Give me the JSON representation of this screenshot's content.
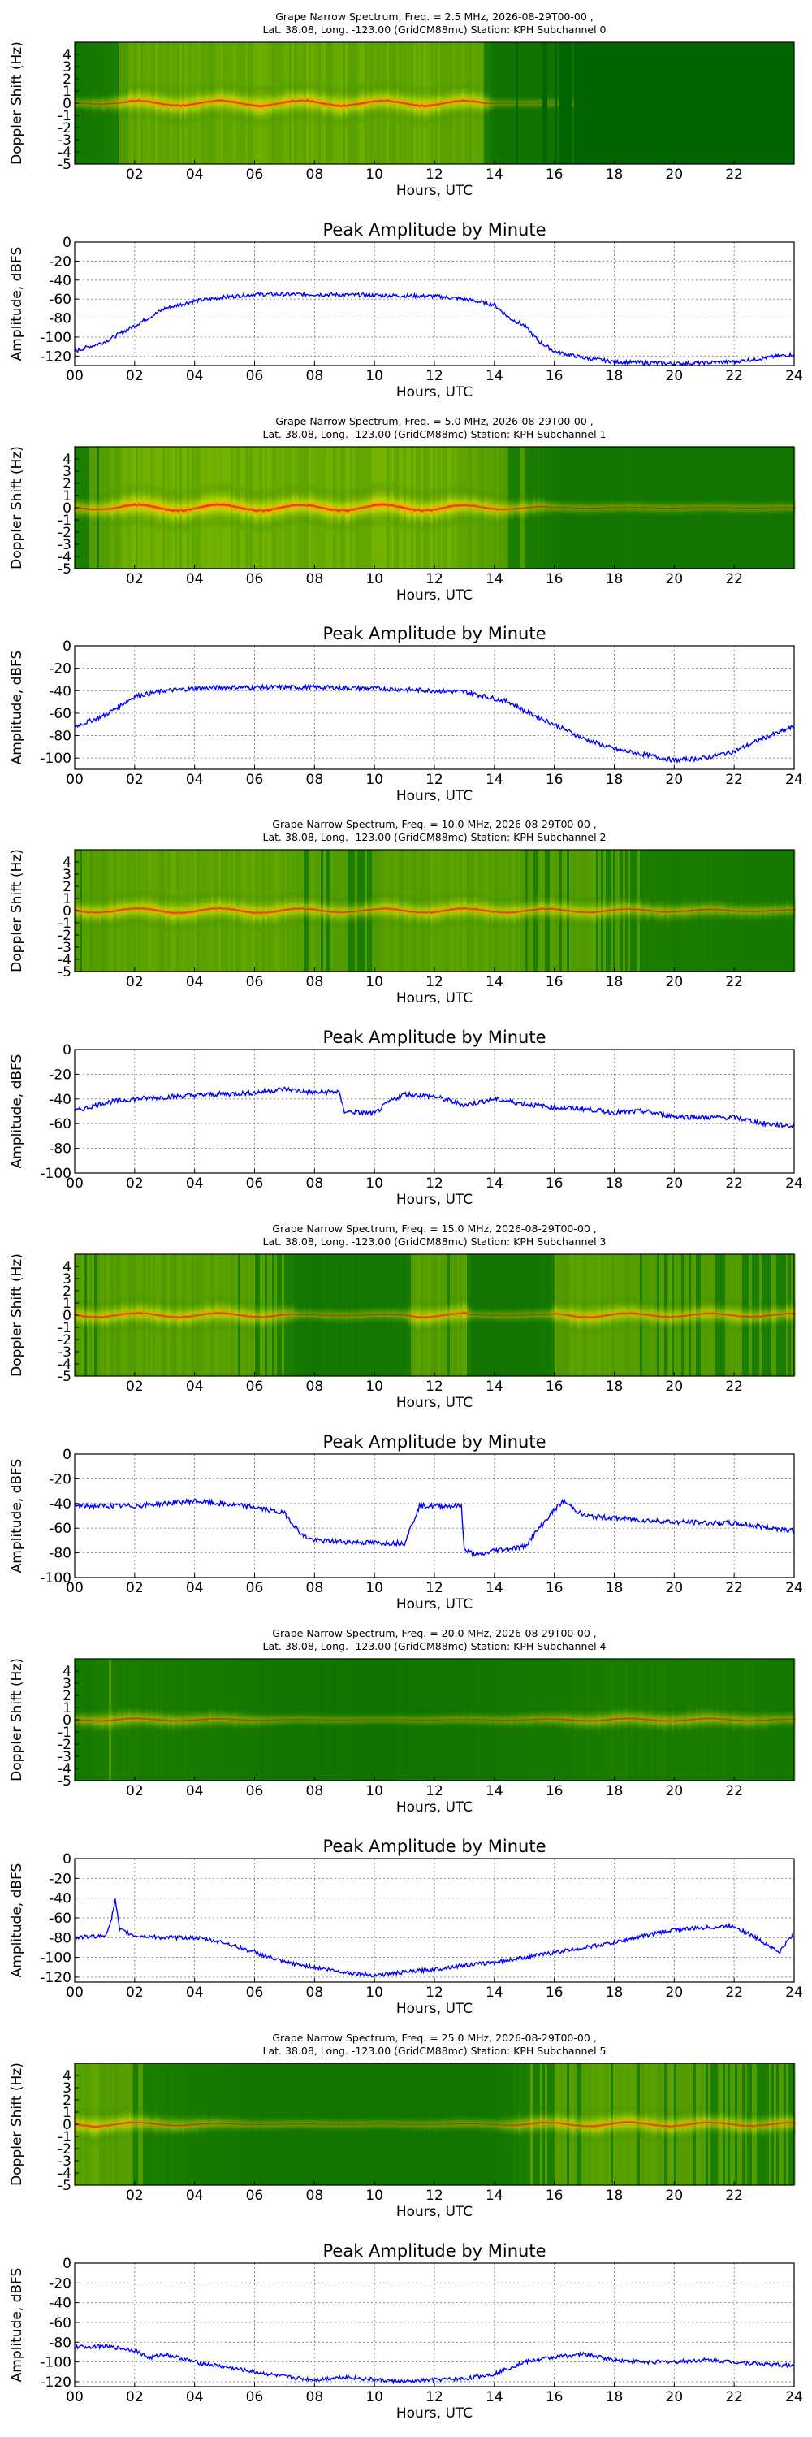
{
  "chart_data": [
    {
      "type": "heatmap",
      "title_line1": "Grape Narrow Spectrum, Freq. = 2.5 MHz, 2026-08-29T00-00 ,",
      "title_line2": "Lat.  38.08, Long. -123.00 (GridCM88mc) Station: KPH Subchannel 0",
      "xlabel": "Hours, UTC",
      "ylabel": "Doppler Shift (Hz)",
      "xlim": [
        0,
        24
      ],
      "ylim": [
        -5,
        5
      ],
      "x_ticks": [
        "02",
        "04",
        "06",
        "08",
        "10",
        "12",
        "14",
        "16",
        "18",
        "20",
        "22"
      ],
      "y_ticks": [
        "4",
        "3",
        "2",
        "1",
        "0",
        "-1",
        "-2",
        "-3",
        "-4",
        "-5"
      ],
      "colormap": [
        "#006400",
        "#7fbf00",
        "#ffff00",
        "#ff8c00",
        "#e60000"
      ],
      "signal_profile": [
        [
          0,
          0.15
        ],
        [
          1,
          0.3
        ],
        [
          2,
          0.75
        ],
        [
          12,
          0.8
        ],
        [
          13.5,
          0.65
        ],
        [
          14,
          0.05
        ],
        [
          24,
          0.0
        ]
      ]
    },
    {
      "type": "line",
      "title": "Peak Amplitude by Minute",
      "xlabel": "Hours, UTC",
      "ylabel": "Amplitude, dBFS",
      "xlim": [
        0,
        24
      ],
      "ylim": [
        -130,
        0
      ],
      "x_ticks": [
        "00",
        "02",
        "04",
        "06",
        "08",
        "10",
        "12",
        "14",
        "16",
        "18",
        "20",
        "22",
        "24"
      ],
      "y_ticks": [
        "0",
        "-20",
        "-40",
        "-60",
        "-80",
        "-100",
        "-120"
      ],
      "grid": true,
      "series": [
        {
          "x": [
            0,
            1,
            2,
            3,
            4,
            5,
            6,
            8,
            10,
            12,
            13,
            14,
            14.5,
            15,
            15.5,
            16,
            17,
            18,
            20,
            22,
            23,
            24
          ],
          "y": [
            -115,
            -105,
            -88,
            -70,
            -62,
            -58,
            -55,
            -55,
            -56,
            -57,
            -60,
            -66,
            -80,
            -88,
            -105,
            -115,
            -122,
            -126,
            -128,
            -126,
            -122,
            -118
          ]
        }
      ]
    },
    {
      "type": "heatmap",
      "title_line1": "Grape Narrow Spectrum, Freq. = 5.0 MHz, 2026-08-29T00-00 ,",
      "title_line2": "Lat.  38.08, Long. -123.00 (GridCM88mc) Station: KPH Subchannel 1",
      "xlabel": "Hours, UTC",
      "ylabel": "Doppler Shift (Hz)",
      "xlim": [
        0,
        24
      ],
      "ylim": [
        -5,
        5
      ],
      "x_ticks": [
        "02",
        "04",
        "06",
        "08",
        "10",
        "12",
        "14",
        "16",
        "18",
        "20",
        "22"
      ],
      "y_ticks": [
        "4",
        "3",
        "2",
        "1",
        "0",
        "-1",
        "-2",
        "-3",
        "-4",
        "-5"
      ],
      "colormap": [
        "#006400",
        "#7fbf00",
        "#ffff00",
        "#ff8c00",
        "#e60000"
      ],
      "signal_profile": [
        [
          0,
          0.45
        ],
        [
          1,
          0.6
        ],
        [
          2,
          0.9
        ],
        [
          12,
          0.9
        ],
        [
          14,
          0.6
        ],
        [
          15.5,
          0.35
        ],
        [
          16,
          0.15
        ],
        [
          24,
          0.1
        ]
      ]
    },
    {
      "type": "line",
      "title": "Peak Amplitude by Minute",
      "xlabel": "Hours, UTC",
      "ylabel": "Amplitude, dBFS",
      "xlim": [
        0,
        24
      ],
      "ylim": [
        -110,
        0
      ],
      "x_ticks": [
        "00",
        "02",
        "04",
        "06",
        "08",
        "10",
        "12",
        "14",
        "16",
        "18",
        "20",
        "22",
        "24"
      ],
      "y_ticks": [
        "0",
        "-20",
        "-40",
        "-60",
        "-80",
        "-100"
      ],
      "grid": true,
      "series": [
        {
          "x": [
            0,
            1,
            2,
            3,
            4,
            5,
            6,
            8,
            10,
            12,
            13,
            14,
            14.5,
            15,
            16,
            17,
            18,
            19,
            20,
            21,
            22,
            23,
            24
          ],
          "y": [
            -72,
            -62,
            -45,
            -40,
            -38,
            -37,
            -37,
            -37,
            -38,
            -40,
            -41,
            -47,
            -50,
            -58,
            -70,
            -83,
            -92,
            -97,
            -102,
            -100,
            -94,
            -82,
            -72
          ]
        }
      ]
    },
    {
      "type": "heatmap",
      "title_line1": "Grape Narrow Spectrum, Freq. = 10.0 MHz, 2026-08-29T00-00 ,",
      "title_line2": "Lat.  38.08, Long. -123.00 (GridCM88mc) Station: KPH Subchannel 2",
      "xlabel": "Hours, UTC",
      "ylabel": "Doppler Shift (Hz)",
      "xlim": [
        0,
        24
      ],
      "ylim": [
        -5,
        5
      ],
      "x_ticks": [
        "02",
        "04",
        "06",
        "08",
        "10",
        "12",
        "14",
        "16",
        "18",
        "20",
        "22"
      ],
      "y_ticks": [
        "4",
        "3",
        "2",
        "1",
        "0",
        "-1",
        "-2",
        "-3",
        "-4",
        "-5"
      ],
      "colormap": [
        "#006400",
        "#7fbf00",
        "#ffff00",
        "#ff8c00",
        "#e60000"
      ],
      "signal_profile": [
        [
          0,
          0.55
        ],
        [
          2,
          0.7
        ],
        [
          6,
          0.7
        ],
        [
          9,
          0.5
        ],
        [
          12,
          0.65
        ],
        [
          16,
          0.55
        ],
        [
          19,
          0.45
        ],
        [
          22,
          0.3
        ],
        [
          24,
          0.25
        ]
      ]
    },
    {
      "type": "line",
      "title": "Peak Amplitude by Minute",
      "xlabel": "Hours, UTC",
      "ylabel": "Amplitude, dBFS",
      "xlim": [
        0,
        24
      ],
      "ylim": [
        -100,
        0
      ],
      "x_ticks": [
        "00",
        "02",
        "04",
        "06",
        "08",
        "10",
        "12",
        "14",
        "16",
        "18",
        "20",
        "22",
        "24"
      ],
      "y_ticks": [
        "0",
        "-20",
        "-40",
        "-60",
        "-80",
        "-100"
      ],
      "grid": true,
      "series": [
        {
          "x": [
            0,
            1,
            2,
            4,
            6,
            7,
            8,
            8.8,
            9,
            10,
            10.5,
            11,
            12,
            13,
            14,
            15,
            16,
            17,
            18,
            19,
            20,
            21,
            22,
            23,
            24
          ],
          "y": [
            -50,
            -43,
            -40,
            -37,
            -35,
            -32,
            -35,
            -34,
            -50,
            -52,
            -42,
            -36,
            -38,
            -45,
            -40,
            -44,
            -47,
            -48,
            -51,
            -50,
            -54,
            -55,
            -55,
            -60,
            -62
          ]
        }
      ]
    },
    {
      "type": "heatmap",
      "title_line1": "Grape Narrow Spectrum, Freq. = 15.0 MHz, 2026-08-29T00-00 ,",
      "title_line2": "Lat.  38.08, Long. -123.00 (GridCM88mc) Station: KPH Subchannel 3",
      "xlabel": "Hours, UTC",
      "ylabel": "Doppler Shift (Hz)",
      "xlim": [
        0,
        24
      ],
      "ylim": [
        -5,
        5
      ],
      "x_ticks": [
        "02",
        "04",
        "06",
        "08",
        "10",
        "12",
        "14",
        "16",
        "18",
        "20",
        "22"
      ],
      "y_ticks": [
        "4",
        "3",
        "2",
        "1",
        "0",
        "-1",
        "-2",
        "-3",
        "-4",
        "-5"
      ],
      "colormap": [
        "#006400",
        "#7fbf00",
        "#ffff00",
        "#ff8c00",
        "#e60000"
      ],
      "signal_profile": [
        [
          0,
          0.6
        ],
        [
          4,
          0.65
        ],
        [
          7,
          0.5
        ],
        [
          7.5,
          0.15
        ],
        [
          11,
          0.2
        ],
        [
          11.3,
          0.6
        ],
        [
          13,
          0.6
        ],
        [
          13.2,
          0.1
        ],
        [
          15.8,
          0.15
        ],
        [
          16,
          0.65
        ],
        [
          20,
          0.55
        ],
        [
          24,
          0.45
        ]
      ]
    },
    {
      "type": "line",
      "title": "Peak Amplitude by Minute",
      "xlabel": "Hours, UTC",
      "ylabel": "Amplitude, dBFS",
      "xlim": [
        0,
        24
      ],
      "ylim": [
        -100,
        0
      ],
      "x_ticks": [
        "00",
        "02",
        "04",
        "06",
        "08",
        "10",
        "12",
        "14",
        "16",
        "18",
        "20",
        "22",
        "24"
      ],
      "y_ticks": [
        "0",
        "-20",
        "-40",
        "-60",
        "-80",
        "-100"
      ],
      "grid": true,
      "series": [
        {
          "x": [
            0,
            2,
            4,
            6,
            7,
            7.6,
            8,
            10,
            11,
            11.2,
            11.5,
            12,
            12.9,
            13,
            13.5,
            14,
            15,
            15.5,
            16,
            16.3,
            17,
            18,
            20,
            22,
            24
          ],
          "y": [
            -42,
            -42,
            -38,
            -43,
            -48,
            -66,
            -70,
            -72,
            -72,
            -60,
            -42,
            -42,
            -42,
            -78,
            -82,
            -78,
            -75,
            -60,
            -45,
            -38,
            -50,
            -52,
            -55,
            -56,
            -62
          ]
        }
      ]
    },
    {
      "type": "heatmap",
      "title_line1": "Grape Narrow Spectrum, Freq. = 20.0 MHz, 2026-08-29T00-00 ,",
      "title_line2": "Lat.  38.08, Long. -123.00 (GridCM88mc) Station: KPH Subchannel 4",
      "xlabel": "Hours, UTC",
      "ylabel": "Doppler Shift (Hz)",
      "xlim": [
        0,
        24
      ],
      "ylim": [
        -5,
        5
      ],
      "x_ticks": [
        "02",
        "04",
        "06",
        "08",
        "10",
        "12",
        "14",
        "16",
        "18",
        "20",
        "22"
      ],
      "y_ticks": [
        "4",
        "3",
        "2",
        "1",
        "0",
        "-1",
        "-2",
        "-3",
        "-4",
        "-5"
      ],
      "colormap": [
        "#006400",
        "#7fbf00",
        "#ffff00",
        "#ff8c00",
        "#e60000"
      ],
      "signal_profile": [
        [
          0,
          0.25
        ],
        [
          1.3,
          0.45
        ],
        [
          3,
          0.35
        ],
        [
          5,
          0.3
        ],
        [
          7,
          0.1
        ],
        [
          10,
          0.05
        ],
        [
          14,
          0.15
        ],
        [
          18,
          0.4
        ],
        [
          22,
          0.35
        ],
        [
          24,
          0.2
        ]
      ]
    },
    {
      "type": "line",
      "title": "Peak Amplitude by Minute",
      "xlabel": "Hours, UTC",
      "ylabel": "Amplitude, dBFS",
      "xlim": [
        0,
        24
      ],
      "ylim": [
        -125,
        0
      ],
      "x_ticks": [
        "00",
        "02",
        "04",
        "06",
        "08",
        "10",
        "12",
        "14",
        "16",
        "18",
        "20",
        "22",
        "24"
      ],
      "y_ticks": [
        "0",
        "-20",
        "-40",
        "-60",
        "-80",
        "-100",
        "-120"
      ],
      "grid": true,
      "series": [
        {
          "x": [
            0,
            1,
            1.2,
            1.35,
            1.5,
            2,
            3,
            4,
            5,
            6,
            7,
            8,
            9,
            10,
            11,
            12,
            13,
            14,
            15,
            16,
            17,
            18,
            19,
            20,
            21,
            22,
            23,
            23.5,
            24
          ],
          "y": [
            -80,
            -78,
            -65,
            -42,
            -72,
            -78,
            -80,
            -80,
            -85,
            -95,
            -105,
            -110,
            -115,
            -118,
            -115,
            -112,
            -108,
            -105,
            -100,
            -95,
            -90,
            -85,
            -78,
            -72,
            -70,
            -68,
            -85,
            -95,
            -75
          ]
        }
      ]
    },
    {
      "type": "heatmap",
      "title_line1": "Grape Narrow Spectrum, Freq. = 25.0 MHz, 2026-08-29T00-00 ,",
      "title_line2": "Lat.  38.08, Long. -123.00 (GridCM88mc) Station: KPH Subchannel 5",
      "xlabel": "Hours, UTC",
      "ylabel": "Doppler Shift (Hz)",
      "xlim": [
        0,
        24
      ],
      "ylim": [
        -5,
        5
      ],
      "x_ticks": [
        "02",
        "04",
        "06",
        "08",
        "10",
        "12",
        "14",
        "16",
        "18",
        "20",
        "22"
      ],
      "y_ticks": [
        "4",
        "3",
        "2",
        "1",
        "0",
        "-1",
        "-2",
        "-3",
        "-4",
        "-5"
      ],
      "colormap": [
        "#006400",
        "#7fbf00",
        "#ffff00",
        "#ff8c00",
        "#e60000"
      ],
      "signal_profile": [
        [
          0,
          0.7
        ],
        [
          1.5,
          0.6
        ],
        [
          2.5,
          0.45
        ],
        [
          4,
          0.3
        ],
        [
          6,
          0.12
        ],
        [
          10,
          0.08
        ],
        [
          14,
          0.15
        ],
        [
          15,
          0.5
        ],
        [
          17,
          0.6
        ],
        [
          21,
          0.55
        ],
        [
          24,
          0.45
        ]
      ]
    },
    {
      "type": "line",
      "title": "Peak Amplitude by Minute",
      "xlabel": "Hours, UTC",
      "ylabel": "Amplitude, dBFS",
      "xlim": [
        0,
        24
      ],
      "ylim": [
        -125,
        0
      ],
      "x_ticks": [
        "00",
        "02",
        "04",
        "06",
        "08",
        "10",
        "12",
        "14",
        "16",
        "18",
        "20",
        "22",
        "24"
      ],
      "y_ticks": [
        "0",
        "-20",
        "-40",
        "-60",
        "-80",
        "-100",
        "-120"
      ],
      "grid": true,
      "series": [
        {
          "x": [
            0,
            1,
            2,
            2.5,
            3,
            4,
            5,
            6,
            7,
            8,
            9,
            10,
            11,
            12,
            13,
            14,
            15,
            16,
            17,
            18,
            19,
            20,
            21,
            22,
            23,
            24
          ],
          "y": [
            -85,
            -84,
            -88,
            -96,
            -92,
            -100,
            -105,
            -110,
            -115,
            -118,
            -115,
            -118,
            -120,
            -118,
            -117,
            -112,
            -100,
            -95,
            -92,
            -98,
            -100,
            -100,
            -98,
            -100,
            -102,
            -104
          ]
        }
      ]
    }
  ]
}
